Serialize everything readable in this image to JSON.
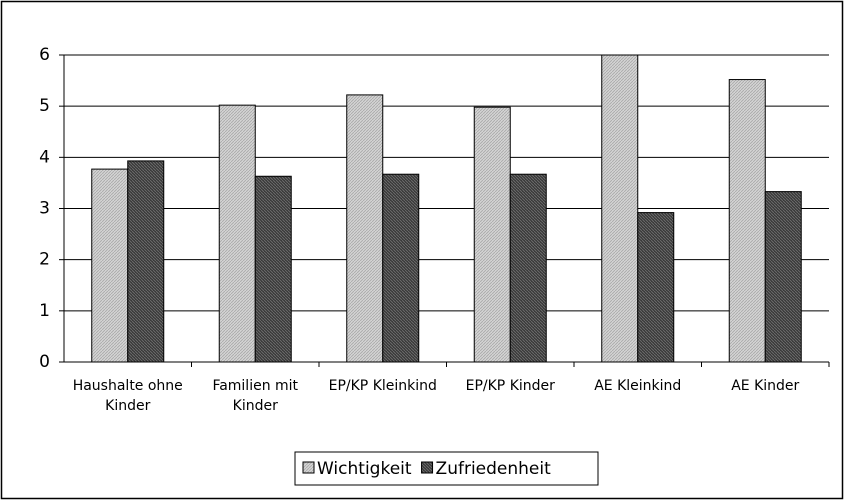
{
  "chart_data": {
    "type": "bar",
    "categories": [
      "Haushalte ohne Kinder",
      "Familien mit Kinder",
      "EP/KP Kleinkind",
      "EP/KP Kinder",
      "AE Kleinkind",
      "AE Kinder"
    ],
    "series": [
      {
        "name": "Wichtigkeit",
        "color": "#d0d0d0",
        "values": [
          3.77,
          5.02,
          5.22,
          4.98,
          6.0,
          5.52
        ]
      },
      {
        "name": "Zufriedenheit",
        "color": "#404040",
        "values": [
          3.93,
          3.63,
          3.67,
          3.67,
          2.92,
          3.33
        ]
      }
    ],
    "ylim": [
      0,
      6
    ],
    "yticks": [
      0,
      1,
      2,
      3,
      4,
      5,
      6
    ],
    "grid": true,
    "legend": "bottom"
  }
}
